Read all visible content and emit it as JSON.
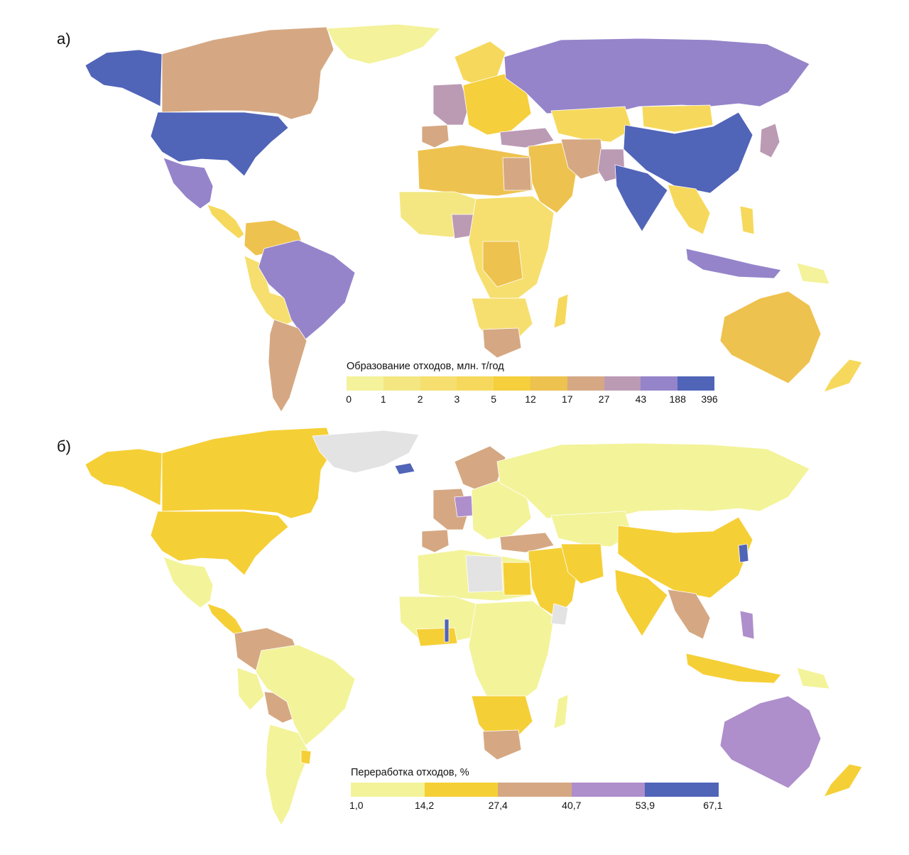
{
  "panel_a": {
    "label": "а)",
    "legend_title": "Образование отходов, млн. т/год",
    "legend_ticks": [
      "0",
      "1",
      "2",
      "3",
      "5",
      "12",
      "17",
      "27",
      "43",
      "188",
      "396"
    ],
    "legend_colors": [
      "#f4f29a",
      "#f4e782",
      "#f6df6f",
      "#f6d95c",
      "#f5cf3c",
      "#eec24e",
      "#d5a883",
      "#bb9ab4",
      "#9584ca",
      "#5064b8"
    ]
  },
  "panel_b": {
    "label": "б)",
    "legend_title": "Переработка отходов, %",
    "legend_ticks": [
      "1,0",
      "14,2",
      "27,4",
      "40,7",
      "53,9",
      "67,1"
    ],
    "legend_colors": [
      "#f3f39a",
      "#f5cf36",
      "#d5a883",
      "#ae8ecb",
      "#5064b8"
    ]
  },
  "colors": {
    "no_data": "#e3e3e3",
    "border": "#ffffff"
  }
}
